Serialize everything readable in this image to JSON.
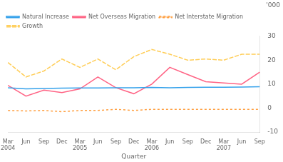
{
  "chart_data": {
    "type": "line",
    "ylabel": "'000",
    "xlabel": "Quarter",
    "categories": [
      "Mar",
      "Jun",
      "Sep",
      "Dec",
      "Mar",
      "Jun",
      "Sep",
      "Dec",
      "Mar",
      "Jun",
      "Sep",
      "Dec",
      "Mar",
      "Jun",
      "Sep"
    ],
    "year_labels": [
      "2004",
      null,
      null,
      null,
      "2005",
      null,
      null,
      null,
      "2006",
      null,
      null,
      null,
      "2007",
      null,
      null
    ],
    "series": [
      {
        "name": "Natural Increase",
        "line_style": "solid",
        "values": [
          8.5,
          8.0,
          8.2,
          8.3,
          8.4,
          8.4,
          8.5,
          8.5,
          8.6,
          8.5,
          8.6,
          8.7,
          8.7,
          8.8,
          8.9
        ]
      },
      {
        "name": "Net Overseas Migration",
        "line_style": "solid",
        "values": [
          9.5,
          5.0,
          7.5,
          6.5,
          8.0,
          13.0,
          8.5,
          6.0,
          10.0,
          17.0,
          14.0,
          11.0,
          10.5,
          10.0,
          15.0
        ]
      },
      {
        "name": "Net Interstate Migration",
        "line_style": "dotted",
        "values": [
          -1.0,
          -1.2,
          -1.0,
          -1.5,
          -1.0,
          -1.0,
          -0.5,
          -1.0,
          -0.5,
          -0.5,
          -0.5,
          -0.5,
          -0.5,
          -0.5,
          -0.5
        ]
      },
      {
        "name": "Growth",
        "line_style": "dashed",
        "values": [
          19.0,
          13.0,
          15.5,
          20.5,
          17.0,
          20.5,
          16.0,
          21.5,
          24.5,
          22.5,
          20.0,
          20.5,
          20.0,
          22.5,
          22.5
        ]
      }
    ],
    "ylim": [
      -10,
      30
    ],
    "yticks": [
      -10,
      0,
      10,
      20,
      30
    ],
    "grid": false,
    "legend": "upper left"
  }
}
